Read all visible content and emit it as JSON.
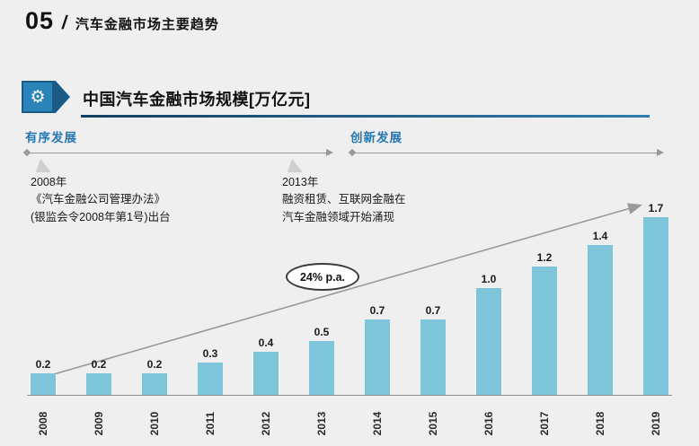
{
  "header": {
    "number": "05",
    "separator": "/",
    "title": "汽车金融市场主要趋势"
  },
  "section": {
    "icon": "gears-icon",
    "title": "中国汽车金融市场规模[万亿元]"
  },
  "phases": [
    {
      "label": "有序发展",
      "annotation": {
        "lines": [
          "2008年",
          "《汽车金融公司管理办法》",
          "(银监会令2008年第1号)出台"
        ]
      }
    },
    {
      "label": "创新发展",
      "annotation": {
        "lines": [
          "2013年",
          "融资租赁、互联网金融在",
          "汽车金融领域开始涌现"
        ]
      }
    }
  ],
  "chart_data": {
    "type": "bar",
    "title": "中国汽车金融市场规模[万亿元]",
    "unit": "万亿元",
    "categories": [
      "2008",
      "2009",
      "2010",
      "2011",
      "2012",
      "2013",
      "2014",
      "2015",
      "2016",
      "2017",
      "2018",
      "2019"
    ],
    "values": [
      0.2,
      0.2,
      0.2,
      0.3,
      0.4,
      0.5,
      0.7,
      0.7,
      1.0,
      1.2,
      1.4,
      1.7
    ],
    "ylim": [
      0,
      1.8
    ],
    "grid": false,
    "legend": "none",
    "bar_color": "#7ec5d9",
    "trend_annotation": "24% p.a."
  },
  "colors": {
    "accent_blue": "#2577b2",
    "underline_dark": "#143f5f",
    "bar": "#7ec5d9",
    "trend_gray": "#9a9a9a"
  }
}
